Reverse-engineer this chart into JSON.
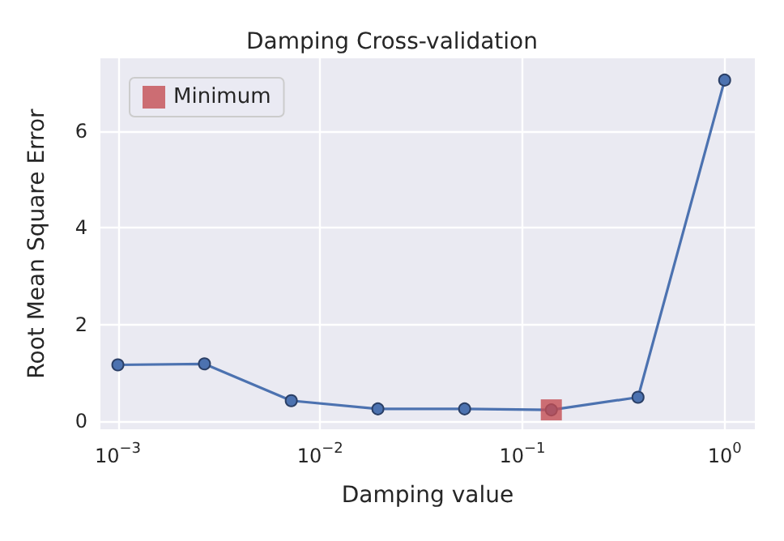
{
  "chart_data": {
    "type": "line",
    "title": "Damping Cross-validation",
    "xlabel": "Damping value",
    "ylabel": "Root Mean Square Error",
    "log": "x",
    "xlim": [
      0.00082,
      1.41
    ],
    "xticks": [
      {
        "value": 0.001,
        "label": "10$^{−3}$"
      },
      {
        "value": 0.01,
        "label": "10$^{−2}$"
      },
      {
        "value": 0.1,
        "label": "10$^{−1}$"
      },
      {
        "value": 1,
        "label": "10$^{0}$"
      }
    ],
    "ylim": [
      -0.16,
      7.5
    ],
    "yticks": [
      0,
      2,
      4,
      6
    ],
    "grid": true,
    "legend": "top left",
    "series": [
      {
        "color": "#4c72b0",
        "marker": "circle",
        "line_style": "solid",
        "x": [
          0.001,
          0.00268,
          0.0072,
          0.0193,
          0.0518,
          0.139,
          0.373,
          1
        ],
        "values": [
          1.17,
          1.19,
          0.43,
          0.26,
          0.26,
          0.24,
          0.5,
          7.05
        ]
      },
      {
        "type": "scatter",
        "name": "Minimum",
        "color": "#c44e52",
        "marker": "square",
        "x": [
          0.139
        ],
        "values": [
          0.24
        ]
      }
    ]
  }
}
